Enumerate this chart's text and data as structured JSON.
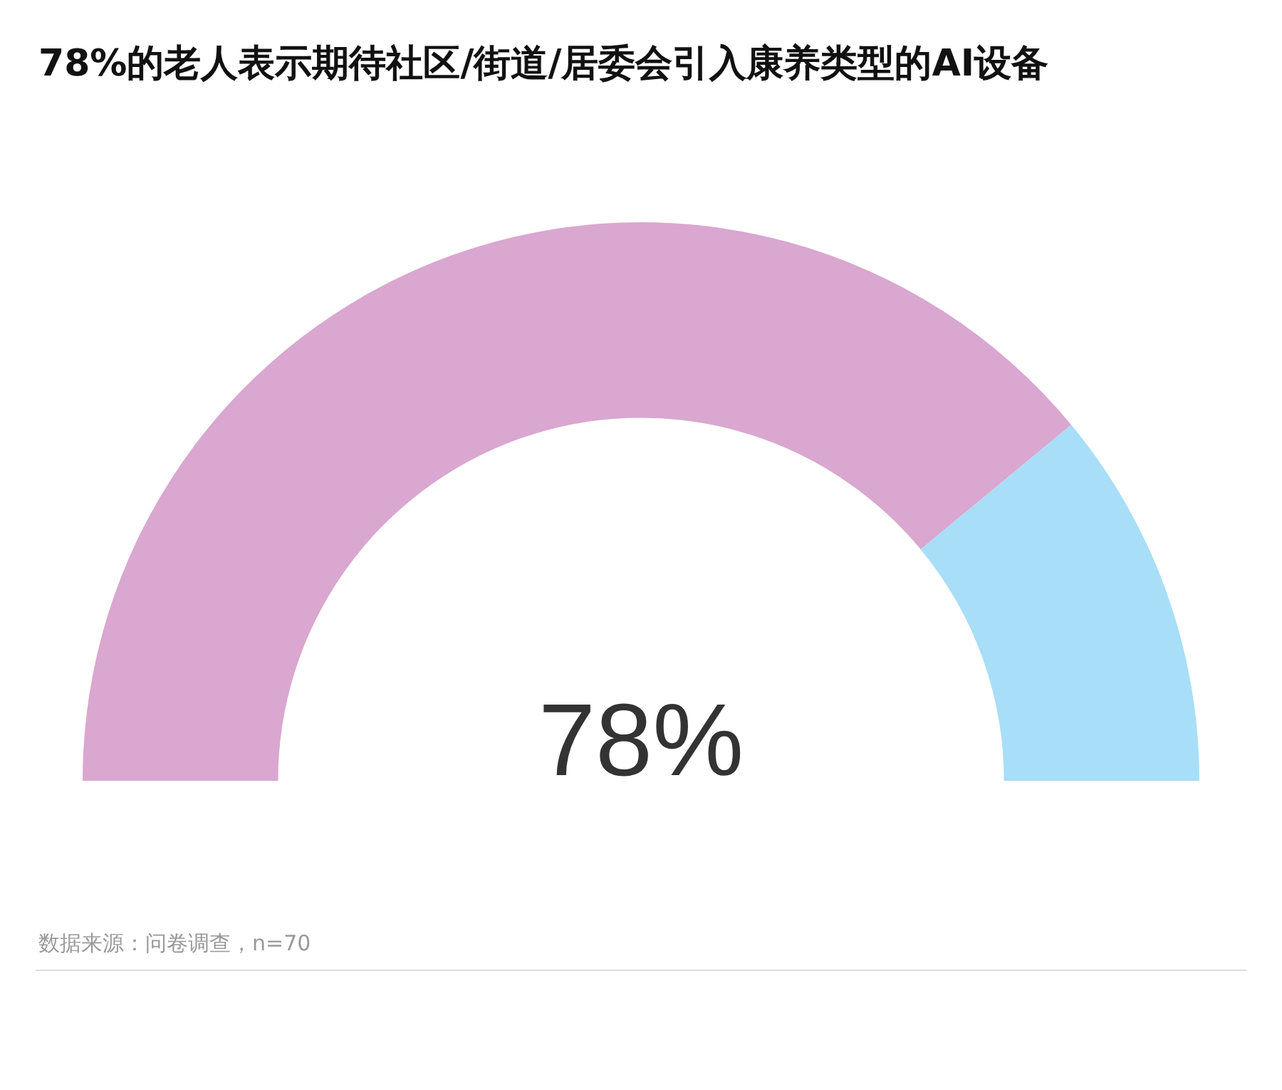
{
  "chart_data": {
    "type": "donut",
    "title": "78%的老人表示期待社区/街道/居委会引入康养类型的AI设备",
    "categories": [
      null,
      null
    ],
    "values": [
      78,
      22
    ],
    "colors": [
      "#d9a7cf",
      "#a8def7"
    ],
    "annotations": [
      "78%",
      "数据来源：问卷调查，n=70"
    ]
  }
}
